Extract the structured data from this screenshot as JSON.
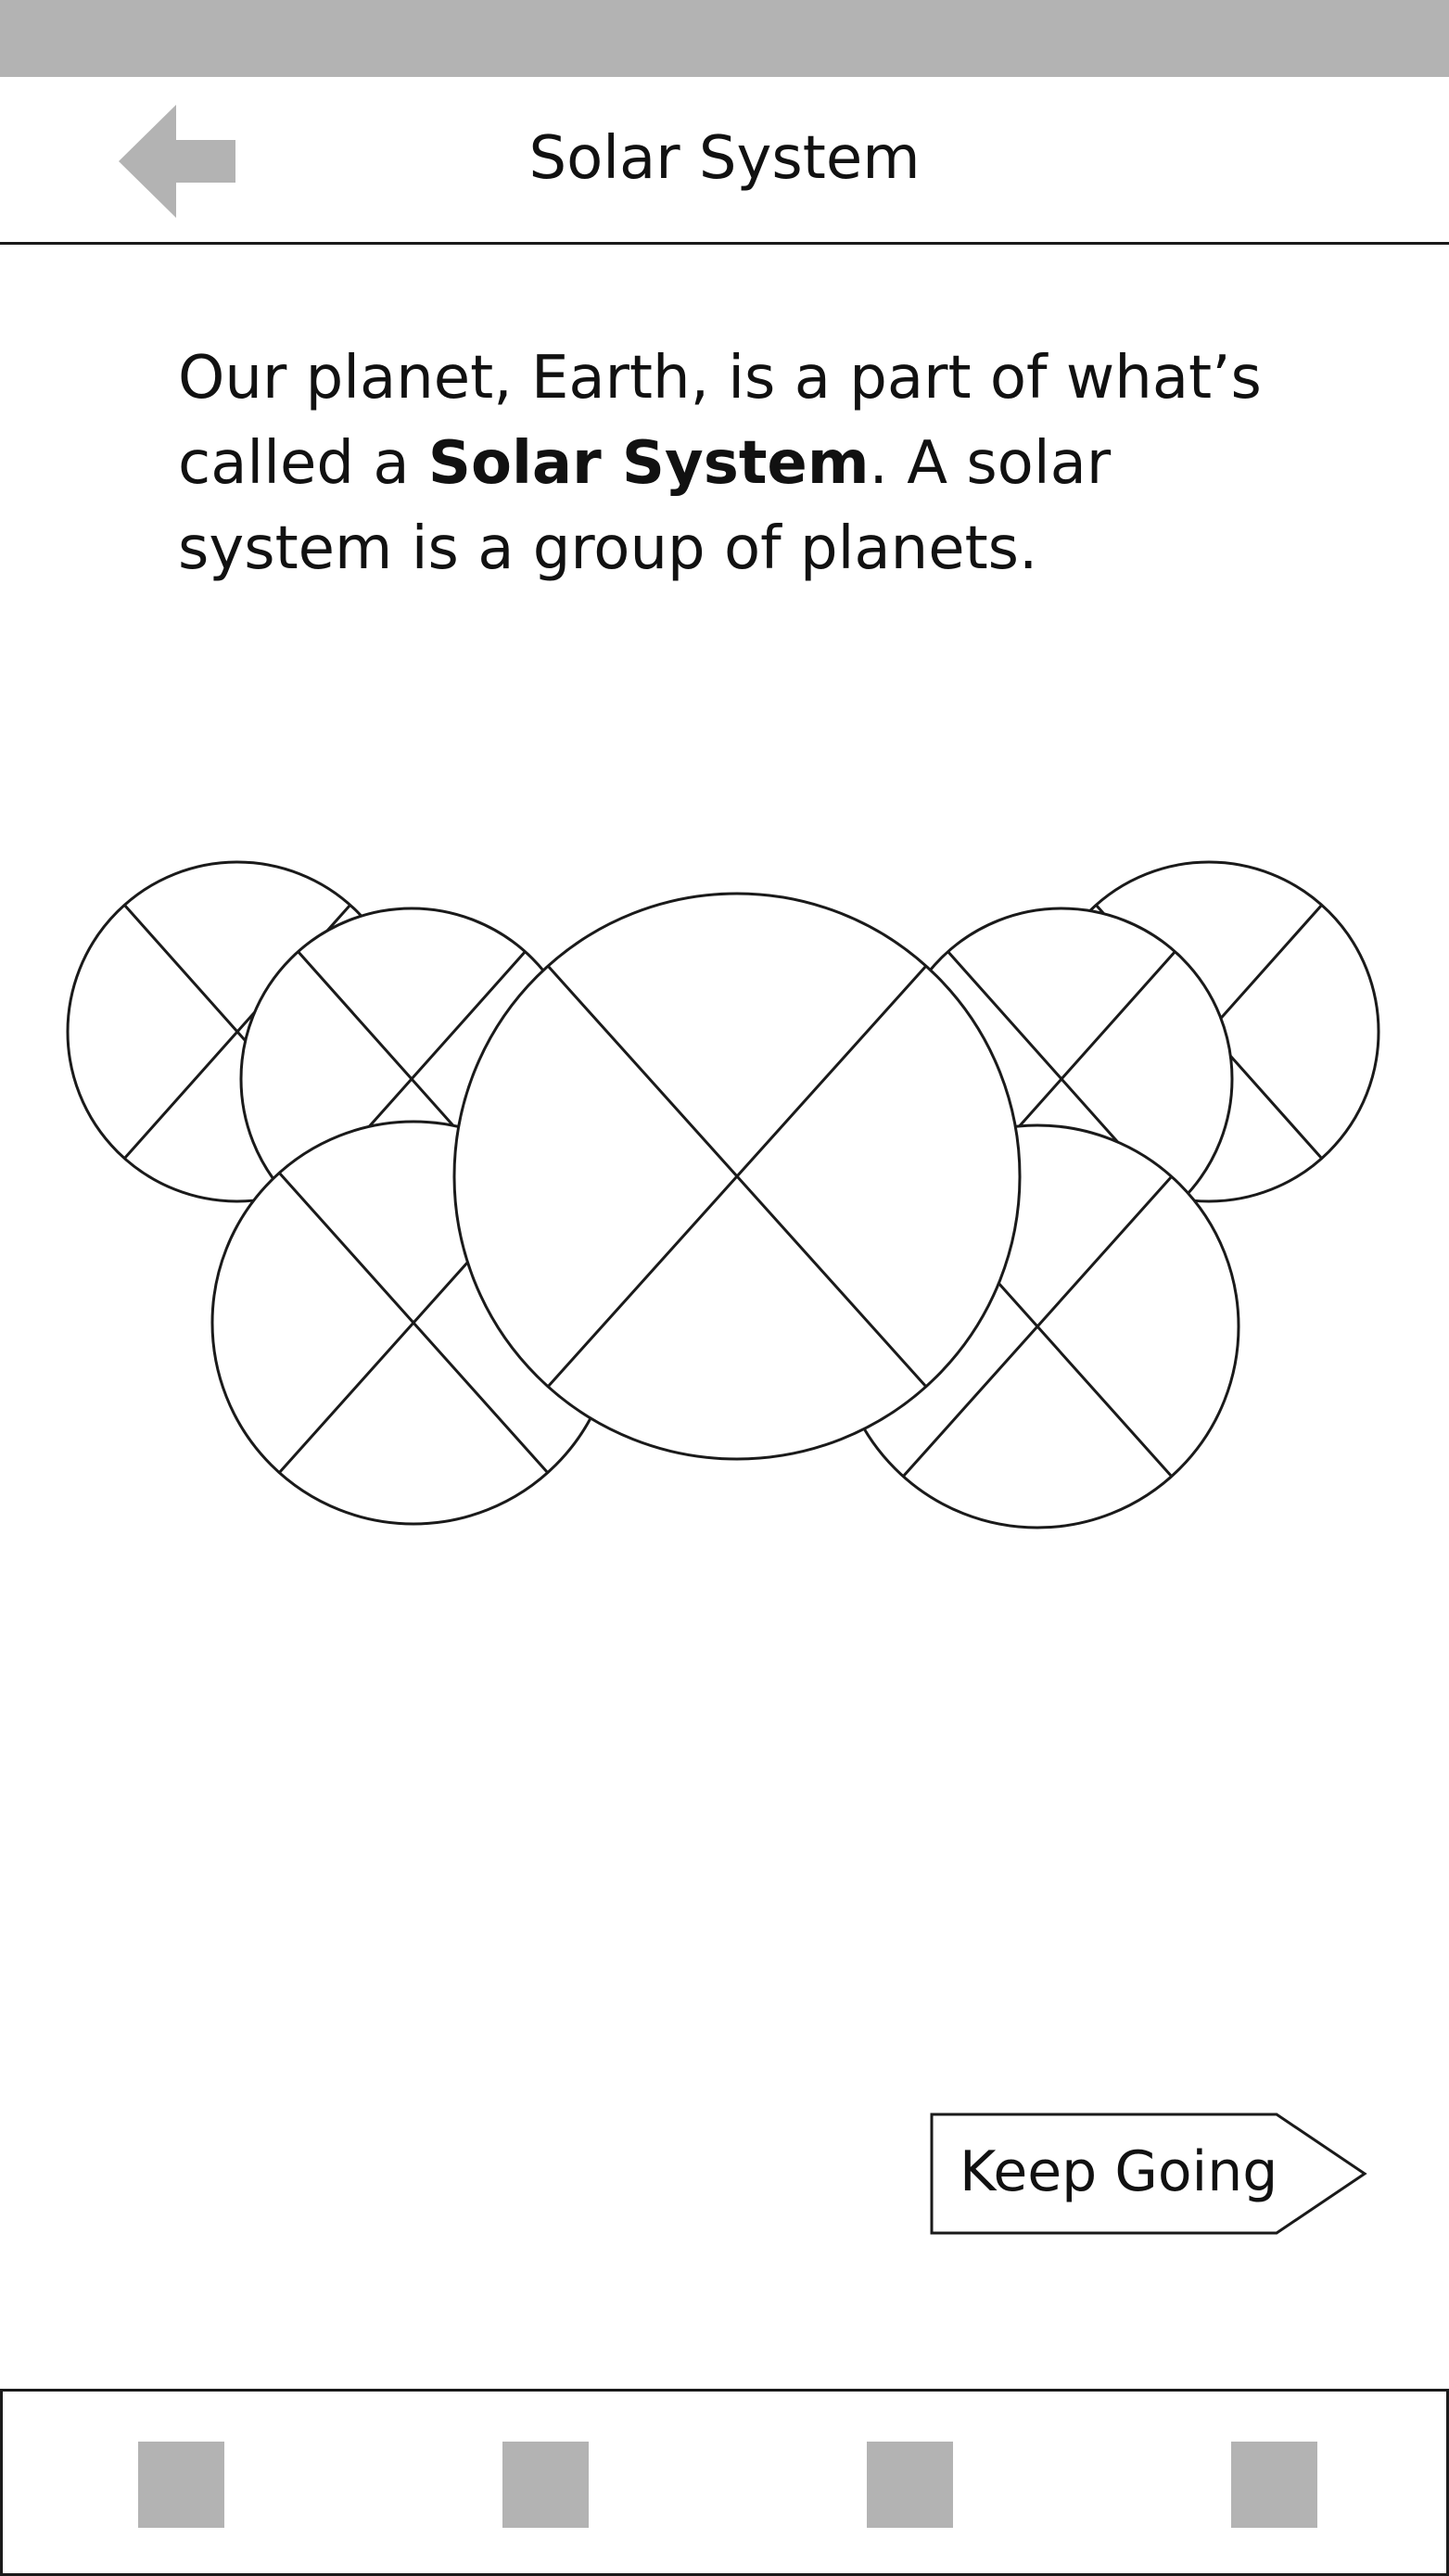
{
  "header": {
    "title": "Solar System",
    "back_icon": "arrow-left-icon"
  },
  "intro": {
    "text_before": "Our planet, Earth, is a part of what’s called a ",
    "bold_term": "Solar System",
    "text_after": ". A solar system is a group of planets."
  },
  "illustration": {
    "kind": "image-placeholder",
    "placeholder_count": 7
  },
  "cta": {
    "label": "Keep Going",
    "icon": "arrow-right-shape"
  },
  "bottom_nav": {
    "tab_count": 4,
    "tab_color": "#b3b3b3"
  },
  "colors": {
    "status_bar": "#b3b3b3",
    "stroke": "#1a1a1a",
    "icon_gray": "#b3b3b3",
    "background": "#ffffff"
  }
}
